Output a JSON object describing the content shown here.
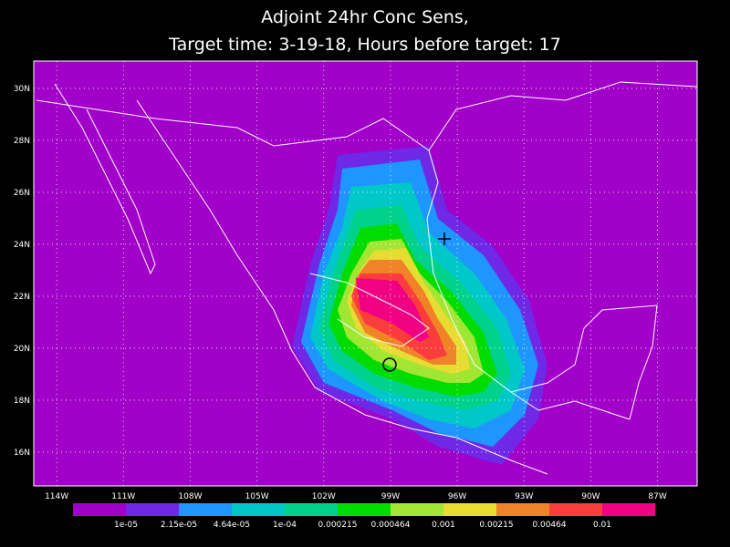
{
  "title": [
    "Adjoint 24hr Conc Sens,",
    "Target time: 3-19-18, Hours before target: 17"
  ],
  "map": {
    "background": "#a000c8",
    "lonlim": [
      -115.03,
      -85.22
    ],
    "latlim": [
      14.7,
      31.05
    ],
    "lon_ticks": [
      {
        "value": -114,
        "label": "114W"
      },
      {
        "value": -111,
        "label": "111W"
      },
      {
        "value": -108,
        "label": "108W"
      },
      {
        "value": -105,
        "label": "105W"
      },
      {
        "value": -102,
        "label": "102W"
      },
      {
        "value": -99,
        "label": "99W"
      },
      {
        "value": -96,
        "label": "96W"
      },
      {
        "value": -93,
        "label": "93W"
      },
      {
        "value": -90,
        "label": "90W"
      },
      {
        "value": -87,
        "label": "87W"
      }
    ],
    "lat_ticks": [
      {
        "value": 16,
        "label": "16N"
      },
      {
        "value": 18,
        "label": "18N"
      },
      {
        "value": 20,
        "label": "20N"
      },
      {
        "value": 22,
        "label": "22N"
      },
      {
        "value": 24,
        "label": "24N"
      },
      {
        "value": 26,
        "label": "26N"
      },
      {
        "value": 28,
        "label": "28N"
      },
      {
        "value": 30,
        "label": "30N"
      }
    ]
  },
  "colorbar": {
    "colors": [
      "#a000c8",
      "#6e28e6",
      "#1e96ff",
      "#00c8c8",
      "#00d28c",
      "#00dc00",
      "#a0e632",
      "#e6dc32",
      "#f08228",
      "#fa3c3c",
      "#f00082"
    ],
    "labels": [
      "1e-05",
      "2.15e-05",
      "4.64e-05",
      "1e-04",
      "0.000215",
      "0.000464",
      "0.001",
      "0.00215",
      "0.00464",
      "0.01"
    ]
  }
}
